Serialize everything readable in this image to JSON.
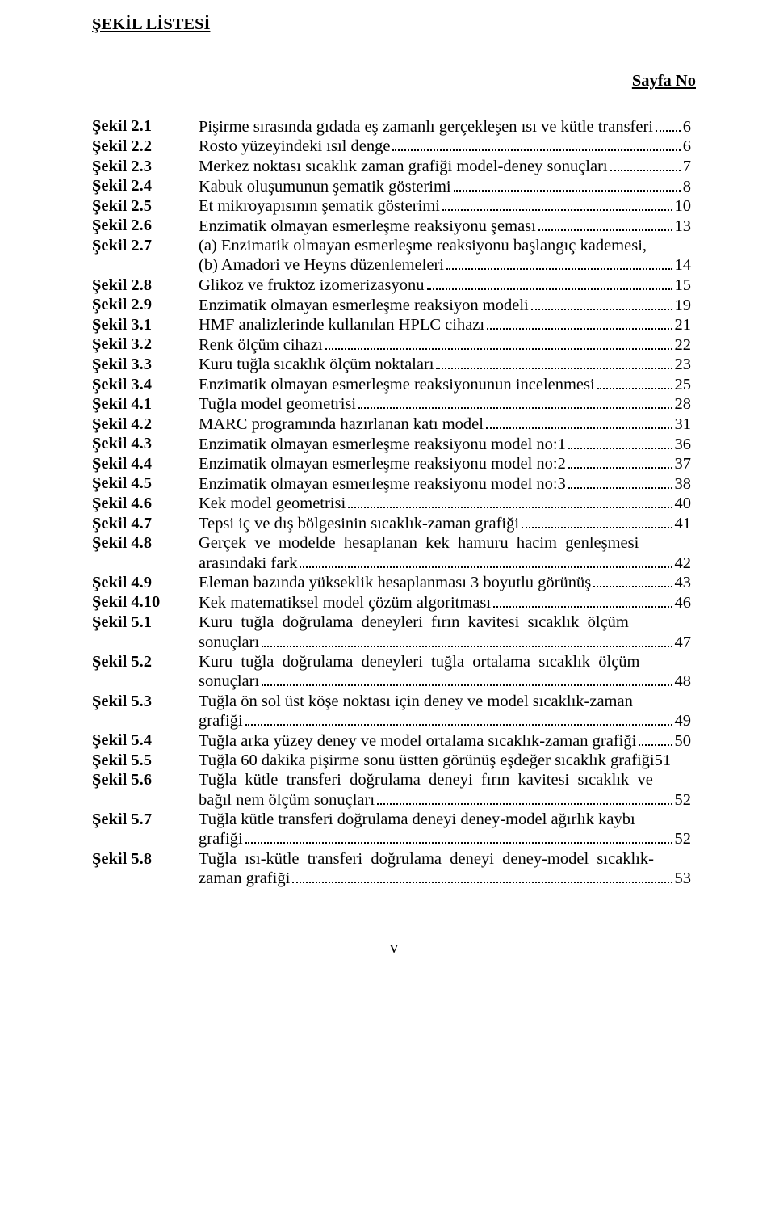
{
  "heading": "ŞEKİL LİSTESİ",
  "sayfa_label": "Sayfa No",
  "page_roman": "v",
  "entries": [
    {
      "label": "Şekil 2.1",
      "lines": [
        {
          "pre": "Pişirme sırasında gıdada eş zamanlı gerçekleşen ısı ve kütle transferi",
          "page": "6"
        }
      ]
    },
    {
      "label": "Şekil 2.2",
      "lines": [
        {
          "pre": "Rosto yüzeyindeki ısıl denge",
          "page": "6"
        }
      ]
    },
    {
      "label": "Şekil 2.3",
      "lines": [
        {
          "pre": "Merkez noktası sıcaklık zaman grafiği model-deney sonuçları",
          "page": "7"
        }
      ]
    },
    {
      "label": "Şekil 2.4",
      "lines": [
        {
          "pre": "Kabuk oluşumunun şematik gösterimi",
          "page": "8"
        }
      ]
    },
    {
      "label": "Şekil 2.5",
      "lines": [
        {
          "pre": "Et mikroyapısının şematik gösterimi",
          "page": "10"
        }
      ]
    },
    {
      "label": "Şekil 2.6",
      "lines": [
        {
          "pre": "Enzimatik olmayan esmerleşme reaksiyonu şeması",
          "page": "13"
        }
      ]
    },
    {
      "label": "Şekil 2.7",
      "lines": [
        {
          "pre": "(a) Enzimatik olmayan esmerleşme reaksiyonu başlangıç kademesi,"
        },
        {
          "pre": "(b) Amadori ve Heyns düzenlemeleri",
          "page": "14"
        }
      ]
    },
    {
      "label": "Şekil 2.8",
      "lines": [
        {
          "pre": "Glikoz ve fruktoz izomerizasyonu",
          "page": "15"
        }
      ]
    },
    {
      "label": "Şekil 2.9",
      "lines": [
        {
          "pre": "Enzimatik olmayan esmerleşme reaksiyon modeli",
          "page": "19"
        }
      ]
    },
    {
      "label": "Şekil 3.1",
      "lines": [
        {
          "pre": "HMF analizlerinde kullanılan HPLC cihazı",
          "page": "21"
        }
      ]
    },
    {
      "label": "Şekil 3.2",
      "lines": [
        {
          "pre": "Renk ölçüm cihazı",
          "page": "22"
        }
      ]
    },
    {
      "label": "Şekil 3.3",
      "lines": [
        {
          "pre": "Kuru tuğla sıcaklık ölçüm noktaları",
          "page": "23"
        }
      ]
    },
    {
      "label": "Şekil 3.4",
      "lines": [
        {
          "pre": "Enzimatik olmayan esmerleşme reaksiyonunun incelenmesi",
          "page": "25"
        }
      ]
    },
    {
      "label": "Şekil 4.1",
      "lines": [
        {
          "pre": "Tuğla model geometrisi",
          "page": "28"
        }
      ]
    },
    {
      "label": "Şekil 4.2",
      "lines": [
        {
          "pre": "MARC programında hazırlanan katı model",
          "page": "31"
        }
      ]
    },
    {
      "label": "Şekil 4.3",
      "lines": [
        {
          "pre": "Enzimatik olmayan esmerleşme reaksiyonu model no:1",
          "page": "36"
        }
      ]
    },
    {
      "label": "Şekil 4.4",
      "lines": [
        {
          "pre": "Enzimatik olmayan esmerleşme reaksiyonu model no:2",
          "page": "37"
        }
      ]
    },
    {
      "label": "Şekil 4.5",
      "lines": [
        {
          "pre": "Enzimatik olmayan esmerleşme reaksiyonu model no:3",
          "page": "38"
        }
      ]
    },
    {
      "label": "Şekil 4.6",
      "lines": [
        {
          "pre": "Kek model geometrisi",
          "page": "40"
        }
      ]
    },
    {
      "label": "Şekil 4.7",
      "lines": [
        {
          "pre": "Tepsi iç ve dış bölgesinin sıcaklık-zaman grafiği",
          "page": "41"
        }
      ]
    },
    {
      "label": "Şekil 4.8",
      "lines": [
        {
          "pre": "Gerçek  ve  modelde  hesaplanan  kek  hamuru  hacim  genleşmesi"
        },
        {
          "pre": "arasındaki fark",
          "page": "42"
        }
      ]
    },
    {
      "label": "Şekil 4.9",
      "lines": [
        {
          "pre": "Eleman bazında yükseklik hesaplanması 3 boyutlu görünüş",
          "page": "43"
        }
      ]
    },
    {
      "label": "Şekil 4.10",
      "lines": [
        {
          "pre": "Kek matematiksel model çözüm algoritması",
          "page": "46"
        }
      ]
    },
    {
      "label": "Şekil 5.1",
      "lines": [
        {
          "pre": "Kuru  tuğla  doğrulama  deneyleri  fırın  kavitesi  sıcaklık  ölçüm"
        },
        {
          "pre": "sonuçları",
          "page": "47"
        }
      ]
    },
    {
      "label": "Şekil 5.2",
      "lines": [
        {
          "pre": "Kuru  tuğla  doğrulama  deneyleri  tuğla  ortalama  sıcaklık  ölçüm"
        },
        {
          "pre": "sonuçları",
          "page": "48"
        }
      ]
    },
    {
      "label": "Şekil 5.3",
      "lines": [
        {
          "pre": "Tuğla ön sol üst köşe noktası için deney ve model sıcaklık-zaman"
        },
        {
          "pre": "grafiği",
          "page": "49"
        }
      ]
    },
    {
      "label": "Şekil 5.4",
      "lines": [
        {
          "pre": "Tuğla arka yüzey deney ve model ortalama sıcaklık-zaman grafiği",
          "page": "50"
        }
      ]
    },
    {
      "label": "Şekil 5.5",
      "lines": [
        {
          "pre": "Tuğla 60 dakika pişirme sonu üstten görünüş eşdeğer sıcaklık grafiği",
          "page_inline": "51"
        }
      ]
    },
    {
      "label": "Şekil 5.6",
      "lines": [
        {
          "pre": "Tuğla  kütle  transferi  doğrulama  deneyi  fırın  kavitesi  sıcaklık  ve"
        },
        {
          "pre": "bağıl nem ölçüm sonuçları",
          "page": "52"
        }
      ]
    },
    {
      "label": "Şekil 5.7",
      "lines": [
        {
          "pre": "Tuğla kütle transferi doğrulama deneyi deney-model ağırlık kaybı"
        },
        {
          "pre": "grafiği",
          "page": "52"
        }
      ]
    },
    {
      "label": "Şekil 5.8",
      "lines": [
        {
          "pre": "Tuğla  ısı-kütle  transferi  doğrulama  deneyi  deney-model  sıcaklık-"
        },
        {
          "pre": "zaman grafiği",
          "page": "53"
        }
      ]
    }
  ]
}
